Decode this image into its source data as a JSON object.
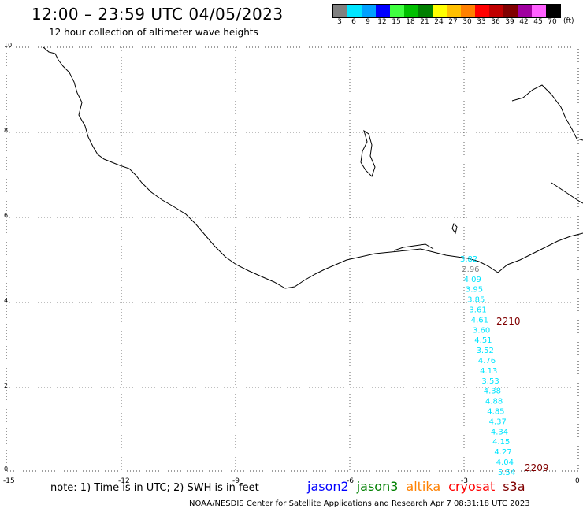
{
  "title": "12:00 – 23:59 UTC 04/05/2023",
  "subtitle": "12 hour collection of altimeter wave heights",
  "legend": {
    "labels": [
      "3",
      "6",
      "9",
      "12",
      "15",
      "18",
      "21",
      "24",
      "27",
      "30",
      "33",
      "36",
      "39",
      "42",
      "45",
      "70"
    ],
    "unit": "(ft)",
    "colors": [
      "#808080",
      "#00e5ff",
      "#00a0ff",
      "#0000ff",
      "#40ff40",
      "#00c000",
      "#008000",
      "#ffff00",
      "#ffc000",
      "#ff8000",
      "#ff0000",
      "#c00000",
      "#800000",
      "#a000a0",
      "#ff60ff",
      "#000000"
    ]
  },
  "axes": {
    "x_ticks": [
      "-15",
      "-12",
      "-9",
      "-6",
      "-3",
      "0"
    ],
    "y_ticks": [
      "0",
      "2",
      "4",
      "6",
      "8",
      "10"
    ]
  },
  "track": {
    "color": "#00e5ff",
    "values": [
      "3.82",
      "2.96",
      "4.09",
      "3.95",
      "3.85",
      "3.61",
      "4.61",
      "3.60",
      "4.51",
      "3.52",
      "4.76",
      "4.13",
      "3.53",
      "4.38",
      "4.88",
      "4.85",
      "4.37",
      "4.34",
      "4.15",
      "4.27",
      "4.04",
      "5.54"
    ],
    "special_colors": {
      "1": "#808080"
    }
  },
  "time_labels": [
    {
      "text": "2210",
      "color": "#800000"
    },
    {
      "text": "2209",
      "color": "#800000"
    }
  ],
  "note": "note: 1) Time is in UTC; 2) SWH is in feet",
  "satellites": [
    {
      "name": "jason2",
      "color": "#0000ff"
    },
    {
      "name": "jason3",
      "color": "#008000"
    },
    {
      "name": "altika",
      "color": "#ff8000"
    },
    {
      "name": "cryosat",
      "color": "#ff0000"
    },
    {
      "name": "s3a",
      "color": "#800000"
    }
  ],
  "footer": "NOAA/NESDIS Center for Satellite Applications and Research   Apr  7 08:31:18 UTC 2023"
}
